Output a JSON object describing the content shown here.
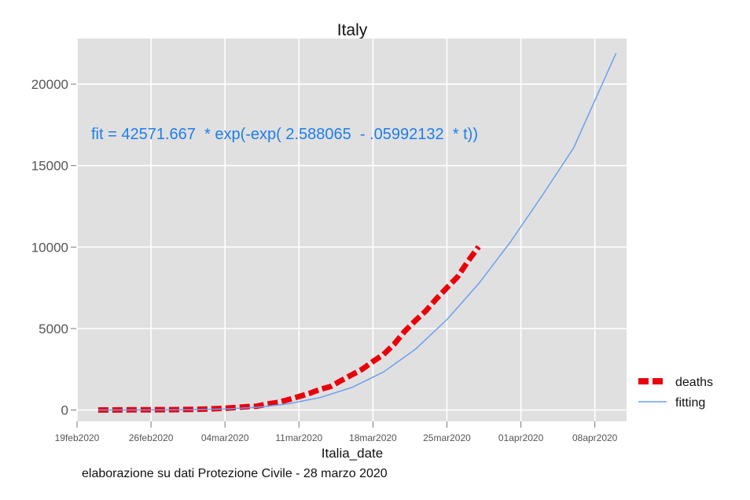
{
  "chart_data": {
    "type": "line",
    "title": "Italy",
    "xlabel": "Italia_date",
    "ylabel": "",
    "ylim": [
      -700,
      22800
    ],
    "xlim": [
      "2020-02-19",
      "2020-04-11"
    ],
    "y_ticks": [
      0,
      5000,
      10000,
      15000,
      20000
    ],
    "x_ticks": [
      "19feb2020",
      "26feb2020",
      "04mar2020",
      "11mar2020",
      "18mar2020",
      "25mar2020",
      "01apr2020",
      "08apr2020"
    ],
    "x_tick_dates": [
      "2020-02-19",
      "2020-02-26",
      "2020-03-04",
      "2020-03-11",
      "2020-03-18",
      "2020-03-25",
      "2020-04-01",
      "2020-04-08"
    ],
    "grid": true,
    "legend_position": "right",
    "annotation": "fit = 42571.667  * exp(-exp( 2.588065  - .05992132  * t))",
    "caption": "elaborazione su dati Protezione Civile - 28 marzo 2020",
    "series": [
      {
        "name": "deaths",
        "style": "dashed",
        "color": "#e8000b",
        "x": [
          "2020-02-21",
          "2020-02-22",
          "2020-02-23",
          "2020-02-24",
          "2020-02-25",
          "2020-02-26",
          "2020-02-27",
          "2020-02-28",
          "2020-02-29",
          "2020-03-01",
          "2020-03-02",
          "2020-03-03",
          "2020-03-04",
          "2020-03-05",
          "2020-03-06",
          "2020-03-07",
          "2020-03-08",
          "2020-03-09",
          "2020-03-10",
          "2020-03-11",
          "2020-03-12",
          "2020-03-13",
          "2020-03-14",
          "2020-03-15",
          "2020-03-16",
          "2020-03-17",
          "2020-03-18",
          "2020-03-19",
          "2020-03-20",
          "2020-03-21",
          "2020-03-22",
          "2020-03-23",
          "2020-03-24",
          "2020-03-25",
          "2020-03-26",
          "2020-03-27",
          "2020-03-28"
        ],
        "y": [
          1,
          2,
          3,
          7,
          10,
          12,
          17,
          21,
          29,
          34,
          52,
          79,
          107,
          148,
          197,
          233,
          366,
          463,
          631,
          827,
          1016,
          1266,
          1441,
          1809,
          2158,
          2503,
          2978,
          3405,
          4032,
          4825,
          5476,
          6077,
          6820,
          7503,
          8165,
          9134,
          10023
        ]
      },
      {
        "name": "fitting",
        "style": "solid",
        "color": "#6a9ff0",
        "x": [
          "2020-02-21",
          "2020-02-24",
          "2020-02-27",
          "2020-03-01",
          "2020-03-04",
          "2020-03-07",
          "2020-03-10",
          "2020-03-13",
          "2020-03-16",
          "2020-03-19",
          "2020-03-22",
          "2020-03-25",
          "2020-03-28",
          "2020-03-31",
          "2020-04-03",
          "2020-04-06",
          "2020-04-10"
        ],
        "y": [
          0,
          1,
          5,
          19,
          62,
          165,
          380,
          760,
          1380,
          2330,
          3720,
          5550,
          7750,
          10300,
          13150,
          16100,
          21900
        ]
      }
    ]
  }
}
